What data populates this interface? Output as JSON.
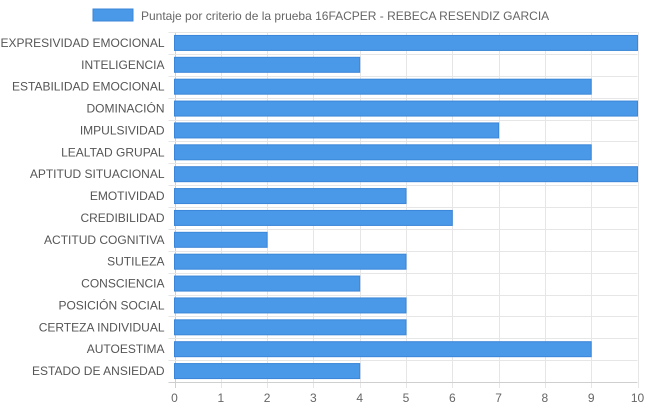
{
  "chart_data": {
    "type": "bar",
    "orientation": "horizontal",
    "series": [
      {
        "name": "Puntaje por criterio de la prueba 16FACPER - REBECA RESENDIZ GARCIA",
        "values": [
          10,
          4,
          9,
          10,
          7,
          9,
          10,
          5,
          6,
          2,
          5,
          4,
          5,
          5,
          9,
          4
        ]
      }
    ],
    "categories": [
      "EXPRESIVIDAD EMOCIONAL",
      "INTELIGENCIA",
      "ESTABILIDAD EMOCIONAL",
      "DOMINACIÓN",
      "IMPULSIVIDAD",
      "LEALTAD GRUPAL",
      "APTITUD SITUACIONAL",
      "EMOTIVIDAD",
      "CREDIBILIDAD",
      "ACTITUD COGNITIVA",
      "SUTILEZA",
      "CONSCIENCIA",
      "POSICIÓN SOCIAL",
      "CERTEZA INDIVIDUAL",
      "AUTOESTIMA",
      "ESTADO DE ANSIEDAD"
    ],
    "xlim": [
      0,
      10
    ],
    "x_ticks": [
      "0",
      "1",
      "2",
      "3",
      "4",
      "5",
      "6",
      "7",
      "8",
      "9",
      "10"
    ],
    "grid": true,
    "legend_position": "top",
    "colors": {
      "bar_fill": "#4a98e8",
      "bar_stroke": "#3b86d8"
    }
  }
}
